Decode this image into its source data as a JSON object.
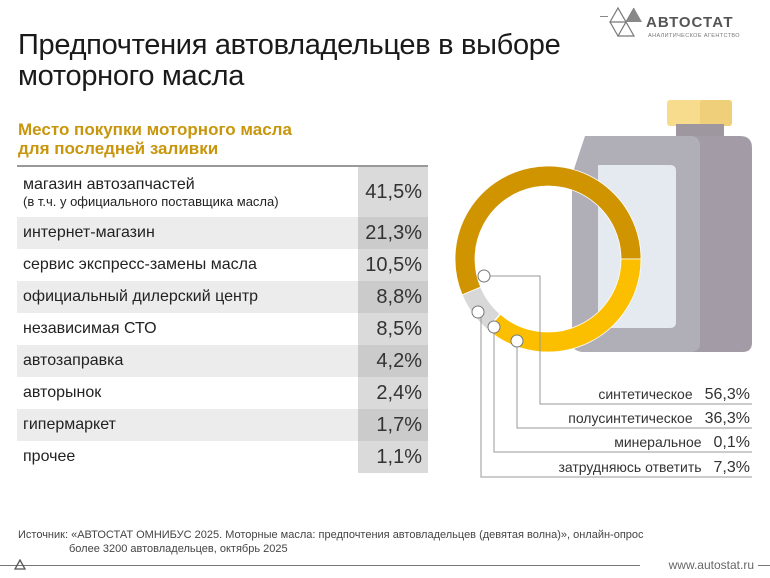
{
  "title_line1": "Предпочтения автовладельцев в выборе",
  "title_line2": "моторного масла",
  "logo": {
    "name": "АВТОСТАТ",
    "tagline": "АНАЛИТИЧЕСКОЕ АГЕНТСТВО"
  },
  "chart_data": [
    {
      "type": "table",
      "title_line1": "Место покупки моторного масла",
      "title_line2": "для последней заливки",
      "rows": [
        {
          "label": "магазин автозапчастей",
          "sublabel": "(в т.ч. у официального поставщика масла)",
          "value": "41,5%"
        },
        {
          "label": "интернет-магазин",
          "value": "21,3%"
        },
        {
          "label": "сервис экспресс-замены масла",
          "value": "10,5%"
        },
        {
          "label": "официальный дилерский центр",
          "value": "8,8%"
        },
        {
          "label": "независимая СТО",
          "value": "8,5%"
        },
        {
          "label": "автозаправка",
          "value": "4,2%"
        },
        {
          "label": "авторынок",
          "value": "2,4%"
        },
        {
          "label": "гипермаркет",
          "value": "1,7%"
        },
        {
          "label": "прочее",
          "value": "1,1%"
        }
      ]
    },
    {
      "type": "pie",
      "donut": true,
      "series": [
        {
          "name": "синтетическое",
          "value": 56.3,
          "label": "56,3%",
          "color": "#d09400"
        },
        {
          "name": "затрудняюсь ответить",
          "value": 7.3,
          "label": "7,3%",
          "color": "#d8d8d8"
        },
        {
          "name": "минеральное",
          "value": 0.1,
          "label": "0,1%",
          "color": "#e07020"
        },
        {
          "name": "полусинтетическое",
          "value": 36.3,
          "label": "36,3%",
          "color": "#fbbf00"
        }
      ],
      "legend_order": [
        "синтетическое",
        "полусинтетическое",
        "минеральное",
        "затрудняюсь ответить"
      ]
    }
  ],
  "source": {
    "line1": "Источник: «АВТОСТАТ ОМНИБУС 2025. Моторные масла: предпочтения автовладельцев (девятая волна)», онлайн-опрос",
    "line2": "более 3200 автовладельцев, октябрь 2025"
  },
  "url": "www.autostat.ru"
}
